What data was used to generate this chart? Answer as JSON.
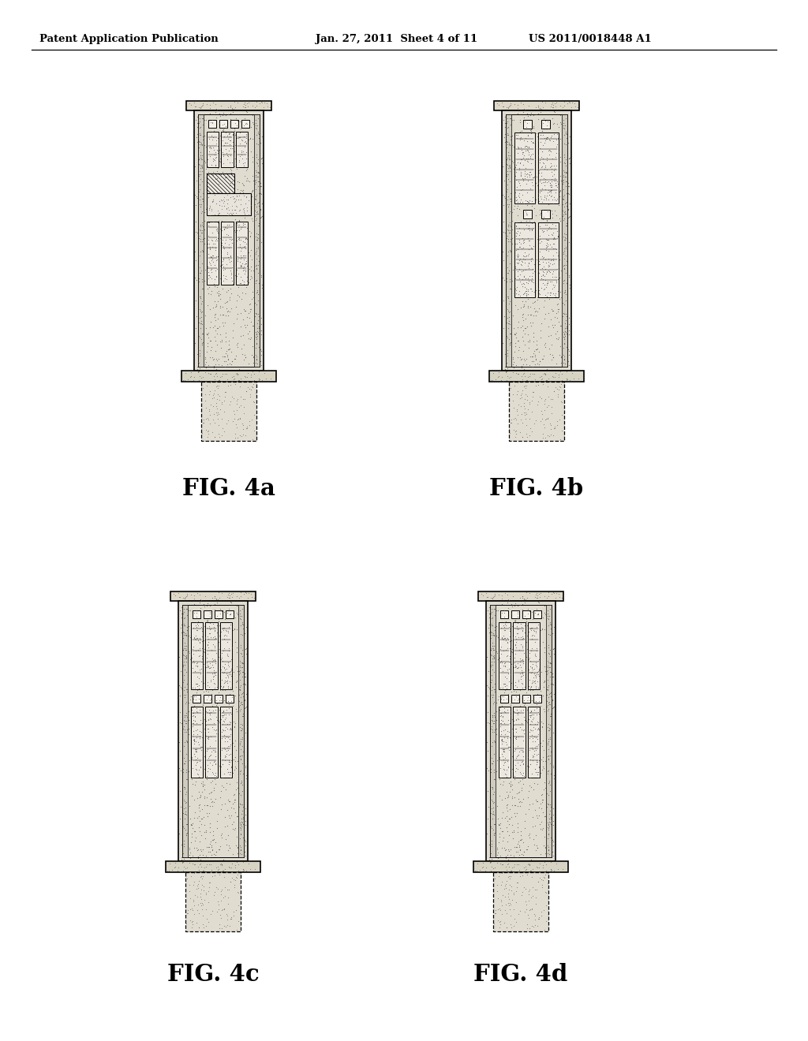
{
  "header_left": "Patent Application Publication",
  "header_mid": "Jan. 27, 2011  Sheet 4 of 11",
  "header_right": "US 2011/0018448 A1",
  "fig_labels": [
    "FIG. 4a",
    "FIG. 4b",
    "FIG. 4c",
    "FIG. 4d"
  ],
  "background": "#ffffff",
  "line_color": "#000000",
  "body_fill": "#e8e4dc",
  "panel_fill": "#f0ece4",
  "cap_fill": "#ddd8cc",
  "stipple_dark": "#333333",
  "stipple_mid": "#666666"
}
